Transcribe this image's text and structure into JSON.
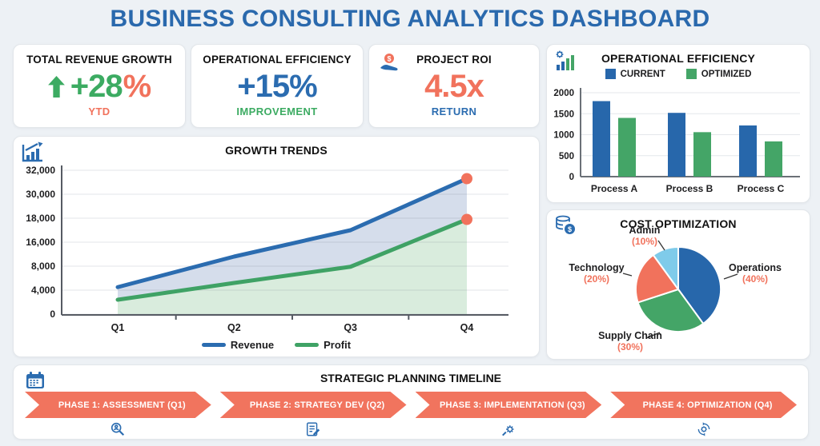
{
  "page": {
    "title": "BUSINESS CONSULTING ANALYTICS DASHBOARD"
  },
  "colors": {
    "blue": "#2b6cb0",
    "green": "#3fa265",
    "salmon": "#f1725c",
    "light_blue": "#7fcbea"
  },
  "kpis": [
    {
      "title": "TOTAL REVENUE GROWTH",
      "value": "+28",
      "suffix": "%",
      "caption": "YTD",
      "value_color": "#3cab62",
      "suffix_color": "#f1725c",
      "caption_color": "#f1725c"
    },
    {
      "title": "OPERATIONAL EFFICIENCY",
      "value": "+15%",
      "suffix": "",
      "caption": "IMPROVEMENT",
      "value_color": "#2b6cb0",
      "suffix_color": "#2b6cb0",
      "caption_color": "#3cab62"
    },
    {
      "title": "PROJECT ROI",
      "value": "4.5x",
      "suffix": "",
      "caption": "RETURN",
      "value_color": "#f1725c",
      "suffix_color": "#f1725c",
      "caption_color": "#2b6cb0"
    }
  ],
  "chart_data": [
    {
      "type": "bar",
      "title": "OPERATIONAL EFFICIENCY",
      "categories": [
        "Process A",
        "Process B",
        "Process C"
      ],
      "series": [
        {
          "name": "CURRENT",
          "color": "#2767ab",
          "values": [
            1800,
            1520,
            1220
          ]
        },
        {
          "name": "OPTIMIZED",
          "color": "#44a567",
          "values": [
            1400,
            1060,
            840
          ]
        }
      ],
      "ylim": [
        0,
        2000
      ],
      "y_ticks": [
        0,
        500,
        1000,
        1500,
        2000
      ],
      "grid": true,
      "legend_position": "top"
    },
    {
      "type": "line",
      "title": "GROWTH TRENDS",
      "x": [
        "Q1",
        "Q2",
        "Q3",
        "Q4"
      ],
      "series": [
        {
          "name": "Revenue",
          "color": "#2b6cb0",
          "values": [
            4500,
            11200,
            17000,
            31300
          ]
        },
        {
          "name": "Profit",
          "color": "#3fa265",
          "values": [
            2400,
            5200,
            7900,
            17900
          ]
        }
      ],
      "y_tick_labels": [
        "0",
        "4,000",
        "8,000",
        "16,000",
        "18,000",
        "30,000",
        "32,000"
      ],
      "area_fill": true,
      "end_dot_color": "#f1725c",
      "grid": true,
      "legend_position": "bottom"
    },
    {
      "type": "pie",
      "title": "COST OPTIMIZATION",
      "slices": [
        {
          "label": "Operations",
          "pct": 40,
          "color": "#2767ab"
        },
        {
          "label": "Supply Chain",
          "pct": 30,
          "color": "#44a567"
        },
        {
          "label": "Technology",
          "pct": 20,
          "color": "#f1725c"
        },
        {
          "label": "Admin",
          "pct": 10,
          "color": "#7fcbea"
        }
      ],
      "start_angle_deg": 0,
      "direction": "clockwise",
      "pct_label_color": "#f1725c"
    }
  ],
  "timeline": {
    "title": "STRATEGIC PLANNING TIMELINE",
    "arrow_color": "#f1745e",
    "phases": [
      {
        "label": "PHASE 1: ASSESSMENT (Q1)",
        "icon": "magnifier"
      },
      {
        "label": "PHASE 2: STRATEGY DEV (Q2)",
        "icon": "checklist"
      },
      {
        "label": "PHASE 3: IMPLEMENTATION (Q3)",
        "icon": "gear-wrench"
      },
      {
        "label": "PHASE 4: OPTIMIZATION (Q4)",
        "icon": "refresh-gear"
      }
    ]
  }
}
